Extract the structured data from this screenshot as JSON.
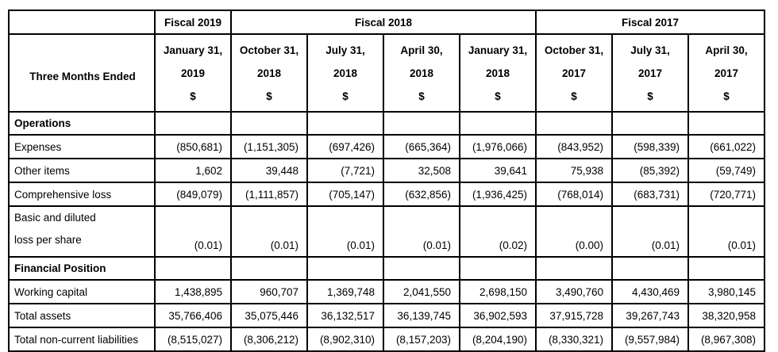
{
  "colors": {
    "border": "#000000",
    "background": "#ffffff",
    "text": "#000000"
  },
  "table": {
    "fiscal_groups": [
      {
        "label": "",
        "span": 1
      },
      {
        "label": "Fiscal 2019",
        "span": 1
      },
      {
        "label": "Fiscal 2018",
        "span": 4
      },
      {
        "label": "Fiscal 2017",
        "span": 3
      }
    ],
    "row_header_label": "Three Months Ended",
    "columns": [
      {
        "date": "January 31,",
        "year": "2019",
        "unit": "$"
      },
      {
        "date": "October 31,",
        "year": "2018",
        "unit": "$"
      },
      {
        "date": "July 31,",
        "year": "2018",
        "unit": "$"
      },
      {
        "date": "April 30,",
        "year": "2018",
        "unit": "$"
      },
      {
        "date": "January 31,",
        "year": "2018",
        "unit": "$"
      },
      {
        "date": "October 31,",
        "year": "2017",
        "unit": "$"
      },
      {
        "date": "July 31,",
        "year": "2017",
        "unit": "$"
      },
      {
        "date": "April 30,",
        "year": "2017",
        "unit": "$"
      }
    ],
    "sections": [
      {
        "title": "Operations",
        "rows": [
          {
            "label": "Expenses",
            "values": [
              "(850,681)",
              "(1,151,305)",
              "(697,426)",
              "(665,364)",
              "(1,976,066)",
              "(843,952)",
              "(598,339)",
              "(661,022)"
            ]
          },
          {
            "label": "Other items",
            "values": [
              "1,602",
              "39,448",
              "(7,721)",
              "32,508",
              "39,641",
              "75,938",
              "(85,392)",
              "(59,749)"
            ]
          },
          {
            "label": "Comprehensive loss",
            "values": [
              "(849,079)",
              "(1,111,857)",
              "(705,147)",
              "(632,856)",
              "(1,936,425)",
              "(768,014)",
              "(683,731)",
              "(720,771)"
            ]
          },
          {
            "label_lines": [
              "Basic and diluted",
              "loss per share"
            ],
            "values": [
              "(0.01)",
              "(0.01)",
              "(0.01)",
              "(0.01)",
              "(0.02)",
              "(0.00)",
              "(0.01)",
              "(0.01)"
            ]
          }
        ]
      },
      {
        "title": "Financial Position",
        "rows": [
          {
            "label": "Working capital",
            "values": [
              "1,438,895",
              "960,707",
              "1,369,748",
              "2,041,550",
              "2,698,150",
              "3,490,760",
              "4,430,469",
              "3,980,145"
            ]
          },
          {
            "label": "Total assets",
            "values": [
              "35,766,406",
              "35,075,446",
              "36,132,517",
              "36,139,745",
              "36,902,593",
              "37,915,728",
              "39,267,743",
              "38,320,958"
            ]
          },
          {
            "label": "Total non-current liabilities",
            "values": [
              "(8,515,027)",
              "(8,306,212)",
              "(8,902,310)",
              "(8,157,203)",
              "(8,204,190)",
              "(8,330,321)",
              "(9,557,984)",
              "(8,967,308)"
            ]
          }
        ]
      }
    ]
  }
}
